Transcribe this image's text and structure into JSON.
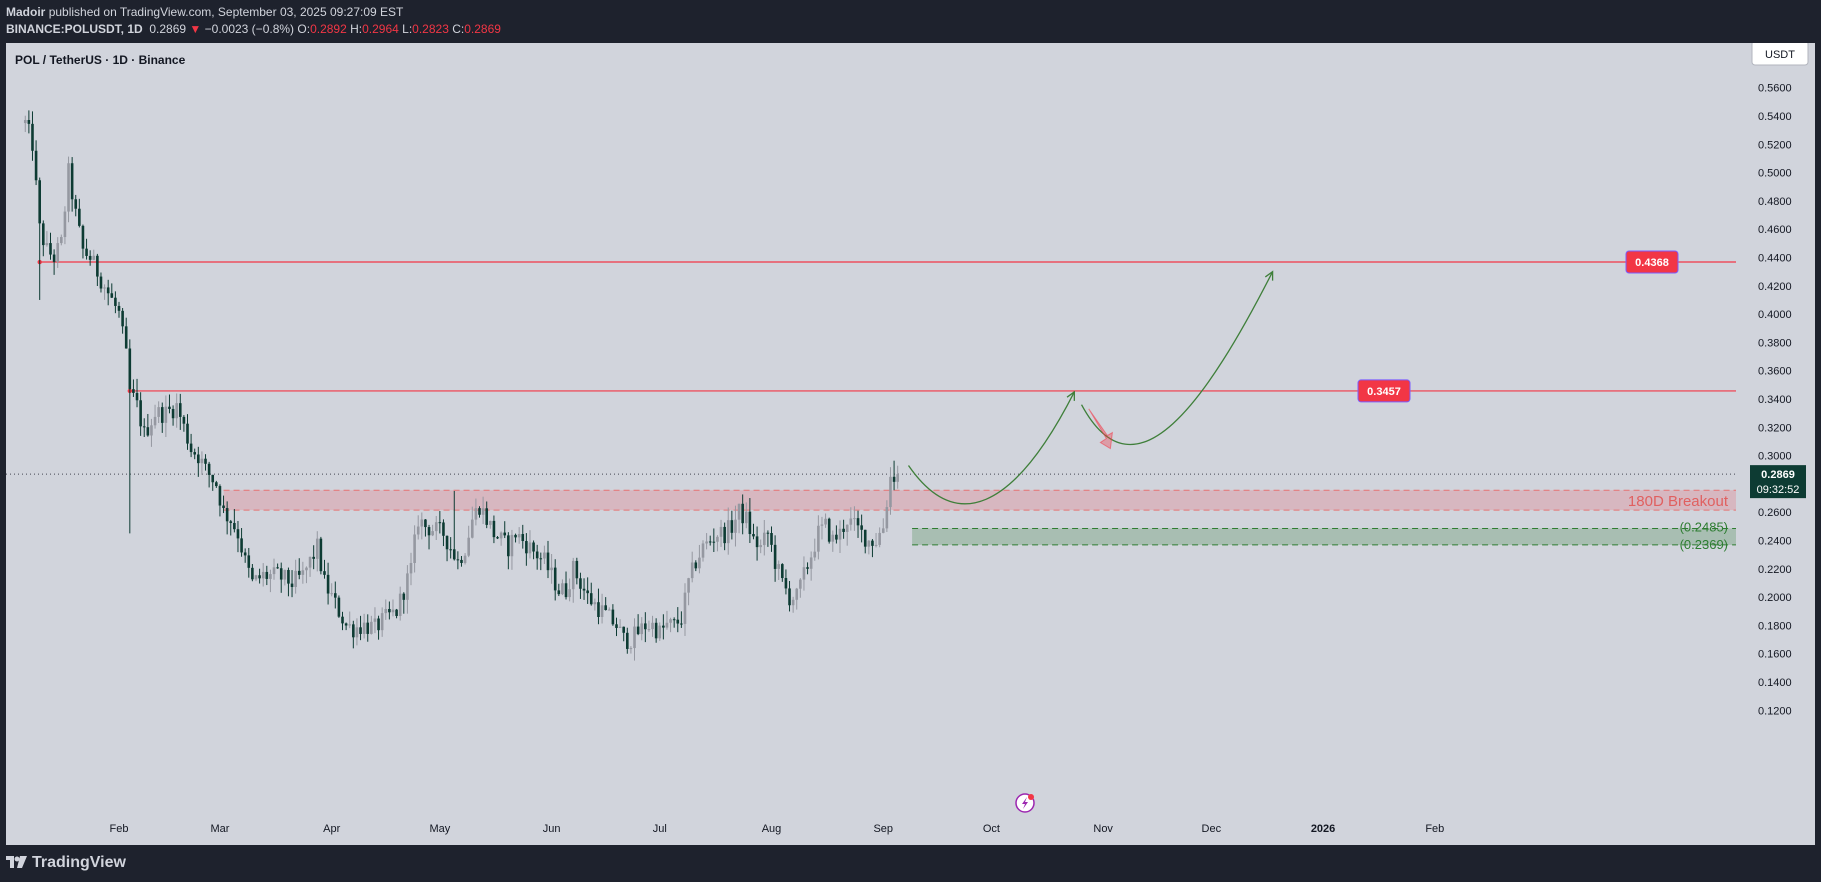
{
  "header": {
    "publisher": "Madoir",
    "published_text": "published on TradingView.com, September 03, 2025 09:27:09 EST",
    "symbol": "BINANCE:POLUSDT, 1D",
    "last": "0.2869",
    "change": "−0.0023 (−0.8%)",
    "o_label": "O:",
    "o_value": "0.2892",
    "h_label": "H:",
    "h_value": "0.2964",
    "l_label": "L:",
    "l_value": "0.2823",
    "c_label": "C:",
    "c_value": "0.2869"
  },
  "footer": {
    "logo_text": "TradingView"
  },
  "colors": {
    "background": "#d1d4dc",
    "up": "#9598a1",
    "down": "#0d3b33",
    "resistance": "#f23645",
    "support": "#2e7d32",
    "arrow": "#3f7f3a",
    "current_price_bg": "#0d3b33"
  },
  "chart_data": {
    "type": "candlestick",
    "title": "POL / TetherUS · 1D · Binance",
    "currency": "USDT",
    "ylim": [
      0.11,
      0.57
    ],
    "y_ticks": [
      "0.5600",
      "0.5400",
      "0.5200",
      "0.5000",
      "0.4800",
      "0.4600",
      "0.4400",
      "0.4200",
      "0.4000",
      "0.3800",
      "0.3600",
      "0.3400",
      "0.3200",
      "0.3000",
      "0.2800",
      "0.2600",
      "0.2400",
      "0.2200",
      "0.2000",
      "0.1800",
      "0.1600",
      "0.1400",
      "0.1200"
    ],
    "x_ticks": [
      {
        "label": "Feb",
        "day": 0
      },
      {
        "label": "Mar",
        "day": 28
      },
      {
        "label": "Apr",
        "day": 59
      },
      {
        "label": "May",
        "day": 89
      },
      {
        "label": "Jun",
        "day": 120
      },
      {
        "label": "Jul",
        "day": 150
      },
      {
        "label": "Aug",
        "day": 181
      },
      {
        "label": "Sep",
        "day": 212
      },
      {
        "label": "Oct",
        "day": 242
      },
      {
        "label": "Nov",
        "day": 273
      },
      {
        "label": "Dec",
        "day": 303
      },
      {
        "label": "2026",
        "day": 334
      },
      {
        "label": "Feb",
        "day": 365
      }
    ],
    "start_day": -26,
    "anchors": [
      [
        -26,
        0.535
      ],
      [
        -24,
        0.52
      ],
      [
        -22,
        0.46
      ],
      [
        -20,
        0.445
      ],
      [
        -18,
        0.44
      ],
      [
        -16,
        0.45
      ],
      [
        -14,
        0.5
      ],
      [
        -12,
        0.47
      ],
      [
        -10,
        0.445
      ],
      [
        -8,
        0.44
      ],
      [
        -6,
        0.43
      ],
      [
        -4,
        0.42
      ],
      [
        -2,
        0.41
      ],
      [
        0,
        0.4
      ],
      [
        2,
        0.37
      ],
      [
        3,
        0.345
      ],
      [
        5,
        0.335
      ],
      [
        7,
        0.315
      ],
      [
        10,
        0.33
      ],
      [
        13,
        0.33
      ],
      [
        16,
        0.335
      ],
      [
        18,
        0.32
      ],
      [
        20,
        0.305
      ],
      [
        22,
        0.3
      ],
      [
        24,
        0.29
      ],
      [
        27,
        0.28
      ],
      [
        29,
        0.26
      ],
      [
        31,
        0.255
      ],
      [
        33,
        0.245
      ],
      [
        35,
        0.225
      ],
      [
        37,
        0.21
      ],
      [
        40,
        0.215
      ],
      [
        44,
        0.215
      ],
      [
        48,
        0.21
      ],
      [
        51,
        0.215
      ],
      [
        53,
        0.225
      ],
      [
        55,
        0.235
      ],
      [
        57,
        0.21
      ],
      [
        59,
        0.2
      ],
      [
        61,
        0.19
      ],
      [
        63,
        0.18
      ],
      [
        65,
        0.178
      ],
      [
        68,
        0.18
      ],
      [
        71,
        0.178
      ],
      [
        74,
        0.185
      ],
      [
        77,
        0.19
      ],
      [
        79,
        0.205
      ],
      [
        81,
        0.22
      ],
      [
        83,
        0.255
      ],
      [
        85,
        0.25
      ],
      [
        87,
        0.248
      ],
      [
        90,
        0.245
      ],
      [
        92,
        0.235
      ],
      [
        94,
        0.225
      ],
      [
        96,
        0.235
      ],
      [
        98,
        0.255
      ],
      [
        100,
        0.265
      ],
      [
        102,
        0.255
      ],
      [
        104,
        0.245
      ],
      [
        106,
        0.24
      ],
      [
        108,
        0.235
      ],
      [
        110,
        0.245
      ],
      [
        112,
        0.24
      ],
      [
        114,
        0.235
      ],
      [
        116,
        0.23
      ],
      [
        118,
        0.225
      ],
      [
        120,
        0.215
      ],
      [
        122,
        0.205
      ],
      [
        124,
        0.205
      ],
      [
        126,
        0.22
      ],
      [
        128,
        0.21
      ],
      [
        130,
        0.2
      ],
      [
        132,
        0.195
      ],
      [
        134,
        0.19
      ],
      [
        136,
        0.185
      ],
      [
        138,
        0.18
      ],
      [
        140,
        0.17
      ],
      [
        142,
        0.17
      ],
      [
        144,
        0.175
      ],
      [
        146,
        0.18
      ],
      [
        148,
        0.18
      ],
      [
        150,
        0.175
      ],
      [
        152,
        0.18
      ],
      [
        154,
        0.18
      ],
      [
        156,
        0.185
      ],
      [
        158,
        0.21
      ],
      [
        160,
        0.225
      ],
      [
        162,
        0.235
      ],
      [
        164,
        0.24
      ],
      [
        166,
        0.245
      ],
      [
        168,
        0.245
      ],
      [
        170,
        0.25
      ],
      [
        172,
        0.26
      ],
      [
        174,
        0.255
      ],
      [
        176,
        0.24
      ],
      [
        178,
        0.235
      ],
      [
        180,
        0.245
      ],
      [
        182,
        0.225
      ],
      [
        184,
        0.21
      ],
      [
        186,
        0.2
      ],
      [
        188,
        0.2
      ],
      [
        190,
        0.215
      ],
      [
        192,
        0.23
      ],
      [
        194,
        0.245
      ],
      [
        196,
        0.25
      ],
      [
        198,
        0.24
      ],
      [
        200,
        0.245
      ],
      [
        202,
        0.255
      ],
      [
        204,
        0.25
      ],
      [
        206,
        0.245
      ],
      [
        208,
        0.24
      ],
      [
        210,
        0.24
      ],
      [
        212,
        0.25
      ],
      [
        214,
        0.285
      ],
      [
        216,
        0.287
      ]
    ],
    "levels": [
      {
        "value": 0.4368,
        "label": "0.4368",
        "start_day": -22
      },
      {
        "value": 0.3457,
        "label": "0.3457",
        "start_day": 3
      }
    ],
    "current_price": {
      "value": 0.2869,
      "label": "0.2869",
      "countdown": "09:32:52"
    },
    "zones": [
      {
        "name": "180D Breakout",
        "from": 0.2615,
        "to": 0.2755,
        "start_day": 29,
        "label": "180D Breakout"
      },
      {
        "name": "support",
        "from": 0.2369,
        "to": 0.2485,
        "start_day": 220,
        "labels": [
          "(0.2485)",
          "(0.2369)"
        ]
      }
    ],
    "projection": {
      "curve1": [
        [
          219,
          0.293
        ],
        [
          232,
          0.245
        ],
        [
          248,
          0.26
        ],
        [
          265,
          0.345
        ]
      ],
      "curve2": [
        [
          267,
          0.336
        ],
        [
          282,
          0.265
        ],
        [
          302,
          0.34
        ],
        [
          320,
          0.43
        ]
      ],
      "pullback": [
        [
          269,
          0.333
        ],
        [
          275,
          0.305
        ]
      ]
    }
  }
}
